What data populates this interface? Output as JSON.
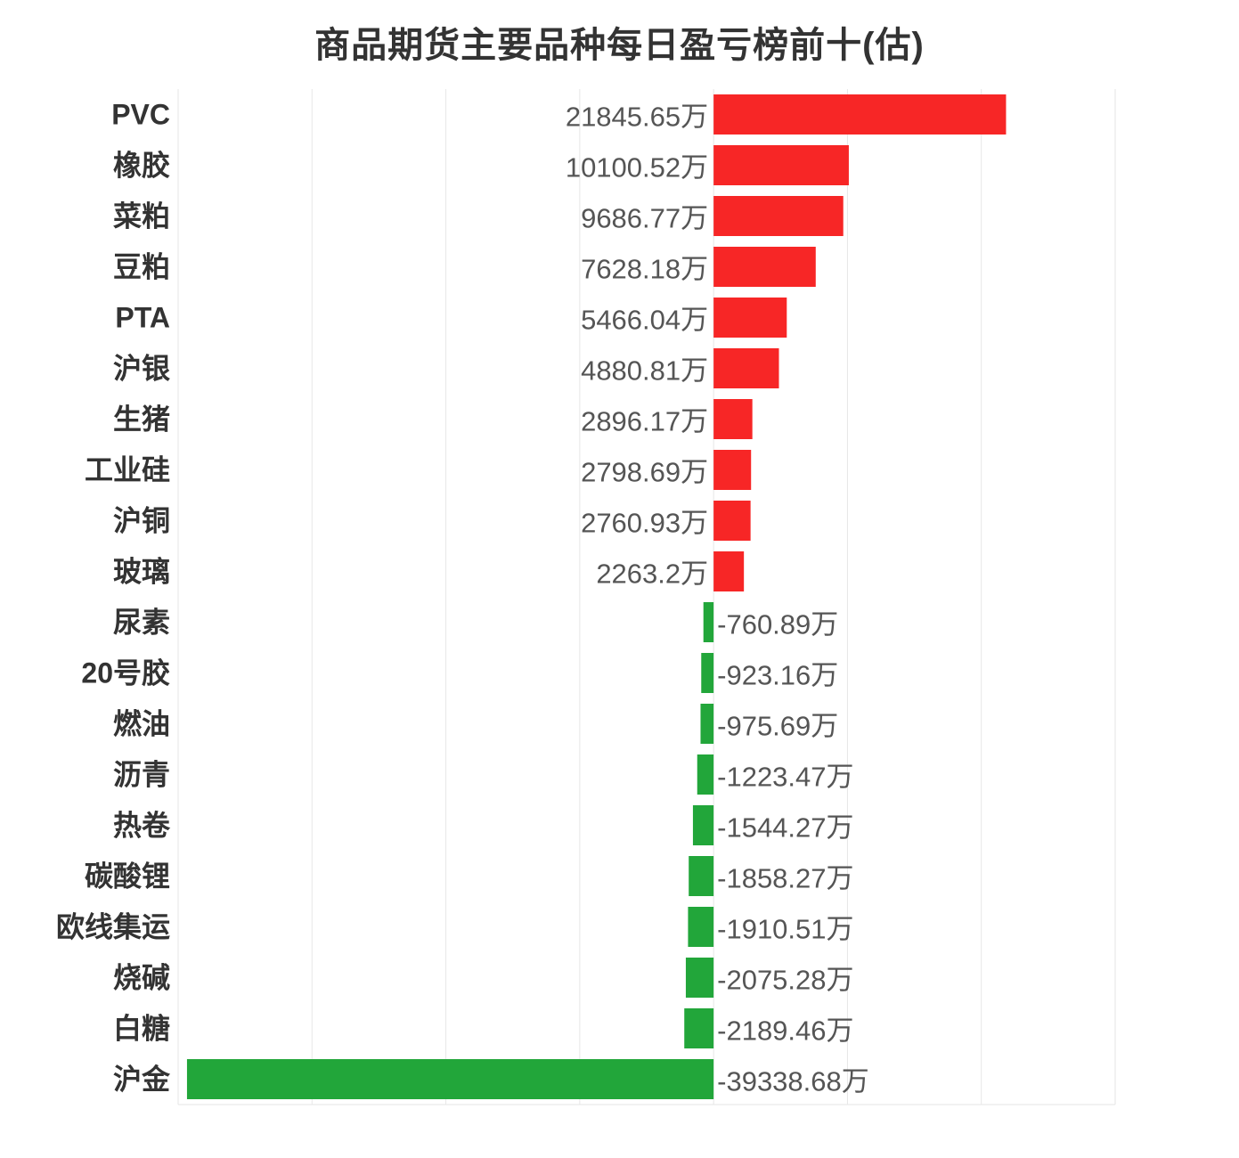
{
  "chart_data": {
    "type": "bar",
    "orientation": "horizontal",
    "title": "商品期货主要品种每日盈亏榜前十(估)",
    "unit_suffix": "万",
    "categories": [
      "PVC",
      "橡胶",
      "菜粕",
      "豆粕",
      "PTA",
      "沪银",
      "生猪",
      "工业硅",
      "沪铜",
      "玻璃",
      "尿素",
      "20号胶",
      "燃油",
      "沥青",
      "热卷",
      "碳酸锂",
      "欧线集运",
      "烧碱",
      "白糖",
      "沪金"
    ],
    "values": [
      21845.65,
      10100.52,
      9686.77,
      7628.18,
      5466.04,
      4880.81,
      2896.17,
      2798.69,
      2760.93,
      2263.2,
      -760.89,
      -923.16,
      -975.69,
      -1223.47,
      -1544.27,
      -1858.27,
      -1910.51,
      -2075.28,
      -2189.46,
      -39338.68
    ],
    "value_labels": [
      "21845.65万",
      "10100.52万",
      "9686.77万",
      "7628.18万",
      "5466.04万",
      "4880.81万",
      "2896.17万",
      "2798.69万",
      "2760.93万",
      "2263.2万",
      "-760.89万",
      "-923.16万",
      "-975.69万",
      "-1223.47万",
      "-1544.27万",
      "-1858.27万",
      "-1910.51万",
      "-2075.28万",
      "-2189.46万",
      "-39338.68万"
    ],
    "xlim": [
      -40000,
      30000
    ],
    "grid": true,
    "legend": "none",
    "colors": {
      "positive": "#f72626",
      "negative": "#22a63a",
      "grid": "#e6e6e6",
      "category_text": "#333333",
      "value_text": "#555555"
    }
  }
}
